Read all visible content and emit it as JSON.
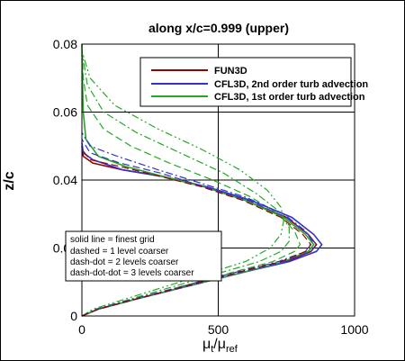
{
  "chart_data": {
    "type": "line",
    "title": "along x/c=0.999 (upper)",
    "ylabel": "z/c",
    "xlabel": {
      "main": "μ",
      "sub1": "t",
      "slash": "/μ",
      "sub2": "ref"
    },
    "xlim": [
      0,
      1000
    ],
    "ylim": [
      0,
      0.08
    ],
    "x_ticks": [
      0,
      500,
      1000
    ],
    "y_ticks": [
      0,
      0.02,
      0.04,
      0.06,
      0.08
    ],
    "x_tick_labels": [
      "0",
      "500",
      "1000"
    ],
    "y_tick_labels": [
      "0",
      "0.02",
      "0.04",
      "0.06",
      "0.08"
    ],
    "grid": true,
    "legend_placement": "top-right",
    "legend": [
      {
        "name": "FUN3D",
        "color": "#990000"
      },
      {
        "name": "CFL3D, 2nd order turb advection",
        "color": "#3333cc"
      },
      {
        "name": "CFL3D, 1st order turb advection",
        "color": "#22aa22"
      }
    ],
    "note": [
      "solid line = finest grid",
      "dashed = 1 level coarser",
      "dash-dot = 2 levels coarser",
      "dash-dot-dot = 3 levels coarser"
    ],
    "series": [
      {
        "name": "FUN3D",
        "color": "#990000",
        "dash": "solid",
        "points": [
          [
            0,
            0.0
          ],
          [
            60,
            0.002
          ],
          [
            200,
            0.005
          ],
          [
            400,
            0.009
          ],
          [
            600,
            0.013
          ],
          [
            750,
            0.016
          ],
          [
            840,
            0.019
          ],
          [
            860,
            0.021
          ],
          [
            830,
            0.024
          ],
          [
            750,
            0.029
          ],
          [
            600,
            0.034
          ],
          [
            450,
            0.038
          ],
          [
            300,
            0.041
          ],
          [
            150,
            0.043
          ],
          [
            40,
            0.045
          ],
          [
            5,
            0.047
          ],
          [
            0,
            0.05
          ]
        ]
      },
      {
        "name": "CFL3D, 2nd order turb advection",
        "color": "#3333cc",
        "dash": "solid",
        "points": [
          [
            0,
            0.0
          ],
          [
            60,
            0.002
          ],
          [
            200,
            0.005
          ],
          [
            400,
            0.009
          ],
          [
            600,
            0.013
          ],
          [
            760,
            0.016
          ],
          [
            860,
            0.019
          ],
          [
            880,
            0.021
          ],
          [
            850,
            0.024
          ],
          [
            770,
            0.029
          ],
          [
            620,
            0.034
          ],
          [
            460,
            0.038
          ],
          [
            300,
            0.041
          ],
          [
            150,
            0.043
          ],
          [
            40,
            0.046
          ],
          [
            5,
            0.048
          ],
          [
            0,
            0.051
          ]
        ]
      },
      {
        "name": "CFL3D, 1st order turb advection",
        "color": "#22aa22",
        "dash": "solid",
        "points": [
          [
            0,
            0.0
          ],
          [
            60,
            0.002
          ],
          [
            200,
            0.005
          ],
          [
            400,
            0.009
          ],
          [
            600,
            0.013
          ],
          [
            740,
            0.016
          ],
          [
            830,
            0.019
          ],
          [
            850,
            0.021
          ],
          [
            820,
            0.024
          ],
          [
            740,
            0.029
          ],
          [
            600,
            0.034
          ],
          [
            450,
            0.038
          ],
          [
            300,
            0.041
          ],
          [
            160,
            0.044
          ],
          [
            60,
            0.047
          ],
          [
            15,
            0.052
          ],
          [
            5,
            0.06
          ],
          [
            2,
            0.07
          ],
          [
            0,
            0.08
          ]
        ]
      },
      {
        "name": "CFL3D, 1st order turb advection",
        "color": "#22aa22",
        "dash": "dashed",
        "points": [
          [
            0,
            0.0
          ],
          [
            60,
            0.002
          ],
          [
            200,
            0.005
          ],
          [
            380,
            0.009
          ],
          [
            560,
            0.013
          ],
          [
            700,
            0.016
          ],
          [
            780,
            0.019
          ],
          [
            800,
            0.021
          ],
          [
            780,
            0.025
          ],
          [
            720,
            0.03
          ],
          [
            620,
            0.035
          ],
          [
            480,
            0.04
          ],
          [
            320,
            0.045
          ],
          [
            180,
            0.05
          ],
          [
            80,
            0.055
          ],
          [
            20,
            0.062
          ],
          [
            5,
            0.07
          ],
          [
            0,
            0.08
          ]
        ]
      },
      {
        "name": "CFL3D, 1st order turb advection",
        "color": "#22aa22",
        "dash": "dash-dot",
        "points": [
          [
            0,
            0.0
          ],
          [
            50,
            0.002
          ],
          [
            180,
            0.005
          ],
          [
            350,
            0.009
          ],
          [
            520,
            0.013
          ],
          [
            650,
            0.016
          ],
          [
            730,
            0.019
          ],
          [
            760,
            0.022
          ],
          [
            760,
            0.026
          ],
          [
            720,
            0.031
          ],
          [
            640,
            0.036
          ],
          [
            520,
            0.042
          ],
          [
            360,
            0.048
          ],
          [
            200,
            0.054
          ],
          [
            80,
            0.06
          ],
          [
            20,
            0.068
          ],
          [
            0,
            0.078
          ]
        ]
      },
      {
        "name": "CFL3D, 1st order turb advection",
        "color": "#22aa22",
        "dash": "dash-dot-dot",
        "points": [
          [
            0,
            0.0
          ],
          [
            40,
            0.002
          ],
          [
            160,
            0.005
          ],
          [
            320,
            0.009
          ],
          [
            480,
            0.013
          ],
          [
            600,
            0.016
          ],
          [
            690,
            0.02
          ],
          [
            730,
            0.024
          ],
          [
            740,
            0.028
          ],
          [
            730,
            0.032
          ],
          [
            680,
            0.037
          ],
          [
            580,
            0.043
          ],
          [
            440,
            0.049
          ],
          [
            280,
            0.055
          ],
          [
            120,
            0.062
          ],
          [
            30,
            0.07
          ],
          [
            0,
            0.078
          ]
        ]
      },
      {
        "name": "CFL3D, 2nd order turb advection",
        "color": "#3333cc",
        "dash": "dashed",
        "points": [
          [
            0,
            0.0
          ],
          [
            60,
            0.002
          ],
          [
            200,
            0.005
          ],
          [
            400,
            0.009
          ],
          [
            590,
            0.013
          ],
          [
            740,
            0.016
          ],
          [
            840,
            0.019
          ],
          [
            860,
            0.021
          ],
          [
            830,
            0.024
          ],
          [
            750,
            0.029
          ],
          [
            610,
            0.034
          ],
          [
            450,
            0.038
          ],
          [
            290,
            0.042
          ],
          [
            140,
            0.045
          ],
          [
            30,
            0.048
          ],
          [
            0,
            0.052
          ]
        ]
      },
      {
        "name": "CFL3D, 2nd order turb advection",
        "color": "#3333cc",
        "dash": "dash-dot",
        "points": [
          [
            0,
            0.0
          ],
          [
            55,
            0.002
          ],
          [
            190,
            0.005
          ],
          [
            380,
            0.009
          ],
          [
            570,
            0.013
          ],
          [
            720,
            0.016
          ],
          [
            820,
            0.019
          ],
          [
            845,
            0.022
          ],
          [
            820,
            0.025
          ],
          [
            740,
            0.03
          ],
          [
            600,
            0.035
          ],
          [
            440,
            0.039
          ],
          [
            280,
            0.043
          ],
          [
            130,
            0.047
          ],
          [
            30,
            0.05
          ],
          [
            0,
            0.054
          ]
        ]
      },
      {
        "name": "FUN3D",
        "color": "#990000",
        "dash": "dashed",
        "points": [
          [
            0,
            0.0
          ],
          [
            60,
            0.002
          ],
          [
            200,
            0.005
          ],
          [
            390,
            0.009
          ],
          [
            580,
            0.013
          ],
          [
            730,
            0.016
          ],
          [
            820,
            0.019
          ],
          [
            840,
            0.021
          ],
          [
            810,
            0.024
          ],
          [
            730,
            0.029
          ],
          [
            590,
            0.034
          ],
          [
            440,
            0.038
          ],
          [
            290,
            0.041
          ],
          [
            140,
            0.044
          ],
          [
            30,
            0.046
          ],
          [
            0,
            0.049
          ]
        ]
      }
    ]
  }
}
